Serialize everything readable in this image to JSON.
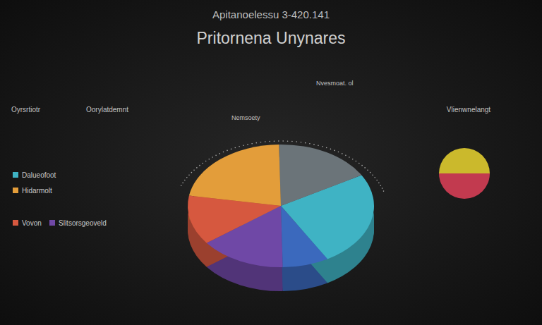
{
  "chart_data": [
    {
      "type": "pie",
      "title": "Apitanoelessu  3-420.141",
      "subtitle": "Pritornena Unynares",
      "annotations": [
        "Oyrsrtiotr",
        "Oorylatdemnt",
        "Nemsoety",
        "Nvesmoat. ol"
      ],
      "categories": [
        "Dalueofoot",
        null,
        "Hidarmolt",
        "Vovon",
        "Slitsorsgeoveld",
        null
      ],
      "values": [
        25,
        17,
        22,
        13,
        15,
        8
      ],
      "colors": [
        "#3fb3c4",
        "#6b7479",
        "#e39d3a",
        "#d6583f",
        "#6f48a6",
        "#3b69bd"
      ],
      "legend": "left"
    },
    {
      "type": "pie",
      "title": "Vlienwnelangt",
      "values": [
        50,
        50
      ],
      "colors": [
        "#cbb92c",
        "#c23a4f"
      ]
    }
  ]
}
